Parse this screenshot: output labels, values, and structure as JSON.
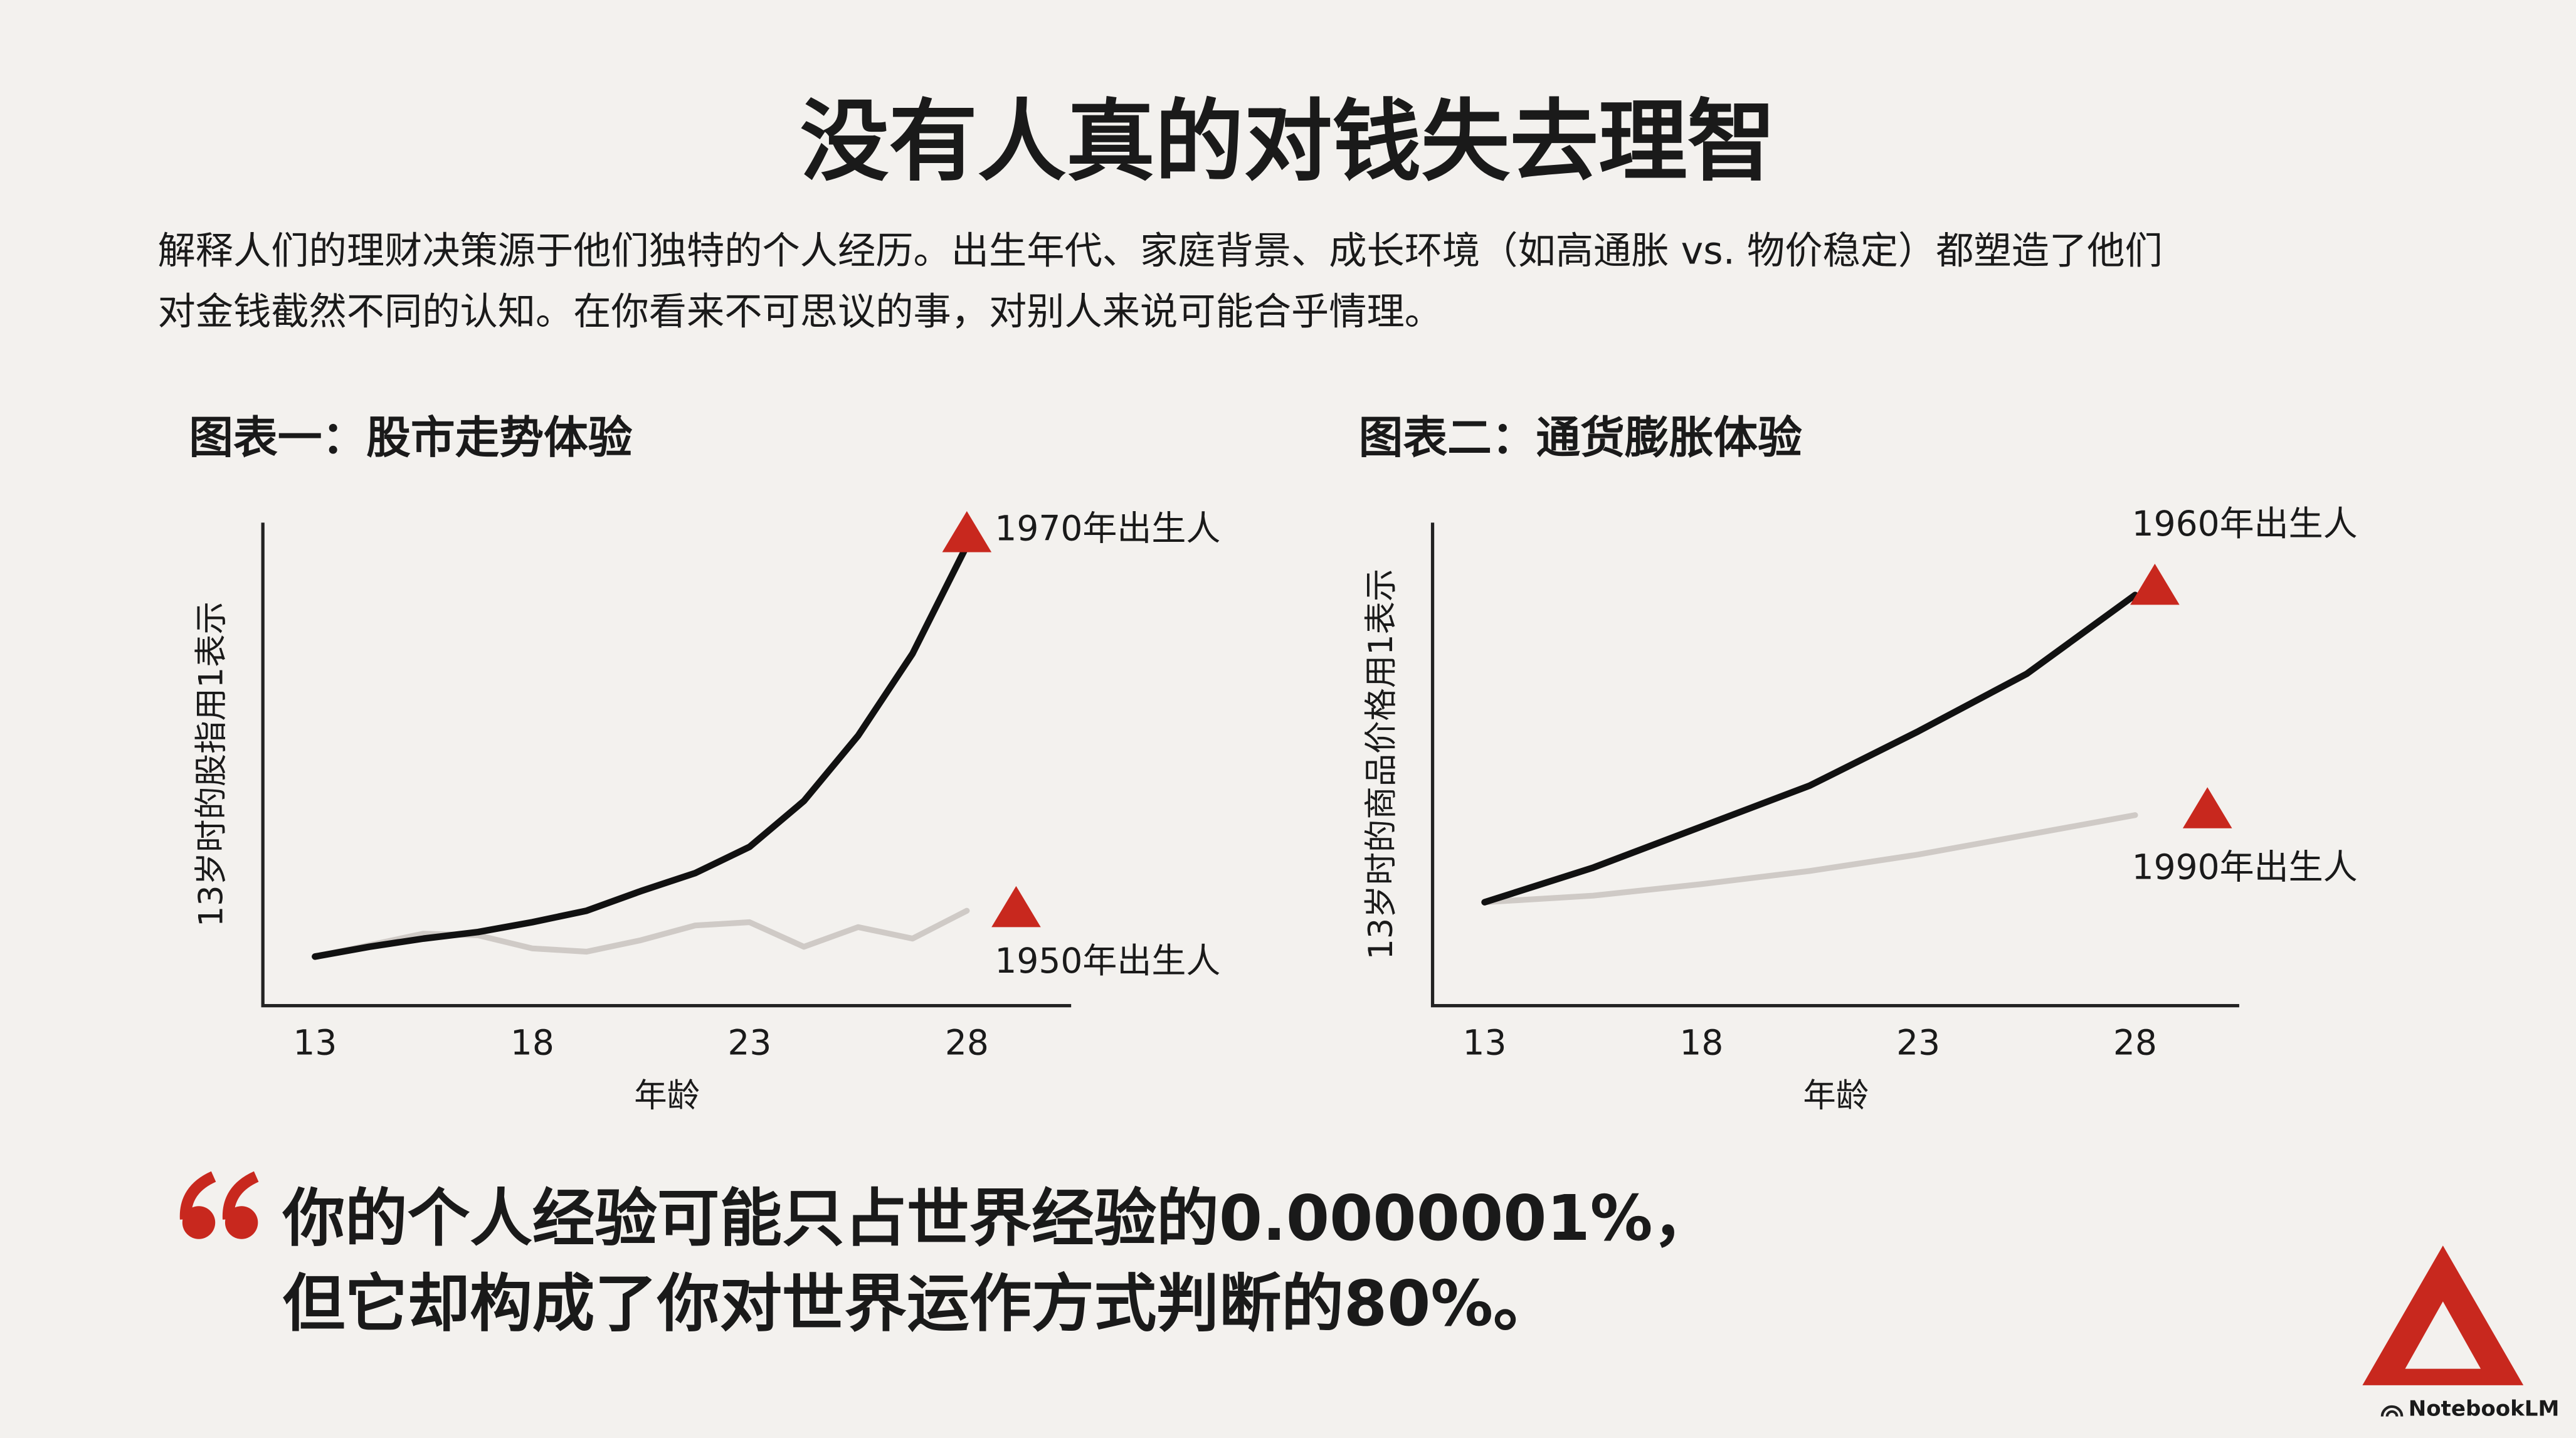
{
  "title": "没有人真的对钱失去理智",
  "description": [
    "解释人们的理财决策源于他们独特的个人经历。出生年代、家庭背景、成长环境（如高通胀 vs. 物价稳定）都塑造了他们",
    "对金钱截然不同的认知。在你看来不可思议的事，对别人来说可能合乎情理。"
  ],
  "chart_data": [
    {
      "type": "line",
      "title": "图表一：股市走势体验",
      "y_label": "13岁时的股指用1表示",
      "x_label": "年龄",
      "x": [
        13,
        14.25,
        15.5,
        16.75,
        18,
        19.25,
        20.5,
        21.75,
        23,
        24.25,
        25.5,
        26.75,
        28
      ],
      "xlim": [
        11.8,
        30.4
      ],
      "xticks": [
        13,
        18,
        23,
        28
      ],
      "ylim": [
        0.4,
        6.3
      ],
      "grid": false,
      "marker_color": "#c8281e",
      "series": [
        {
          "name": "1970年出生人",
          "color": "#111111",
          "values": [
            1,
            1.12,
            1.22,
            1.3,
            1.42,
            1.56,
            1.8,
            2.02,
            2.34,
            2.9,
            3.7,
            4.7,
            6.02
          ]
        },
        {
          "name": "1950年出生人",
          "color": "#cfcac6",
          "values": [
            1,
            1.14,
            1.28,
            1.26,
            1.1,
            1.06,
            1.2,
            1.38,
            1.42,
            1.12,
            1.36,
            1.22,
            1.56
          ]
        }
      ]
    },
    {
      "type": "line",
      "title": "图表二：通货膨胀体验",
      "y_label": "13岁时的商品价格用1表示",
      "x_label": "年龄",
      "x": [
        13,
        15.5,
        18,
        20.5,
        23,
        25.5,
        28
      ],
      "xlim": [
        11.8,
        30.4
      ],
      "xticks": [
        13,
        18,
        23,
        28
      ],
      "ylim": [
        0.37,
        3.31
      ],
      "grid": false,
      "marker_color": "#c8281e",
      "series": [
        {
          "name": "1960年出生人",
          "color": "#111111",
          "values": [
            1,
            1.21,
            1.46,
            1.71,
            2.04,
            2.39,
            2.87
          ]
        },
        {
          "name": "1990年出生人",
          "color": "#cfcac6",
          "values": [
            1,
            1.04,
            1.11,
            1.19,
            1.29,
            1.41,
            1.53
          ]
        }
      ]
    }
  ],
  "quote": [
    "你的个人经验可能只占世界经验的0.0000001%，",
    "但它却构成了你对世界运作方式判断的80%。"
  ],
  "brand": "NotebookLM"
}
